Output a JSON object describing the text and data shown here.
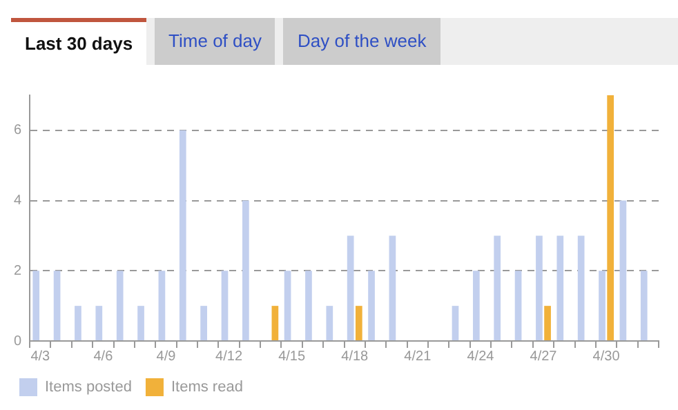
{
  "chart_data": {
    "type": "bar",
    "title": "Last 30 days",
    "annotations": [
      "Time of day",
      "Day of the week"
    ],
    "categories": [
      "4/3",
      null,
      null,
      "4/6",
      null,
      null,
      "4/9",
      null,
      null,
      "4/12",
      null,
      null,
      "4/15",
      null,
      null,
      "4/18",
      null,
      null,
      "4/21",
      null,
      null,
      "4/24",
      null,
      null,
      "4/27",
      null,
      null,
      "4/30",
      null,
      null
    ],
    "series": [
      {
        "name": "Items posted",
        "color": "#c2cfee",
        "values": [
          2,
          2,
          1,
          1,
          2,
          1,
          2,
          6,
          1,
          2,
          4,
          0,
          2,
          2,
          1,
          3,
          2,
          3,
          0,
          0,
          1,
          2,
          3,
          2,
          3,
          3,
          3,
          2,
          4,
          2
        ]
      },
      {
        "name": "Items read",
        "color": "#f1b13a",
        "values": [
          0,
          0,
          0,
          0,
          0,
          0,
          0,
          0,
          0,
          0,
          0,
          1,
          0,
          0,
          0,
          1,
          0,
          0,
          0,
          0,
          0,
          0,
          0,
          0,
          1,
          0,
          0,
          7,
          0,
          0
        ]
      }
    ],
    "ylim": [
      0,
      7
    ],
    "yticks": [
      0,
      2,
      4,
      6
    ],
    "grid": "y",
    "legend": "bottom left"
  }
}
